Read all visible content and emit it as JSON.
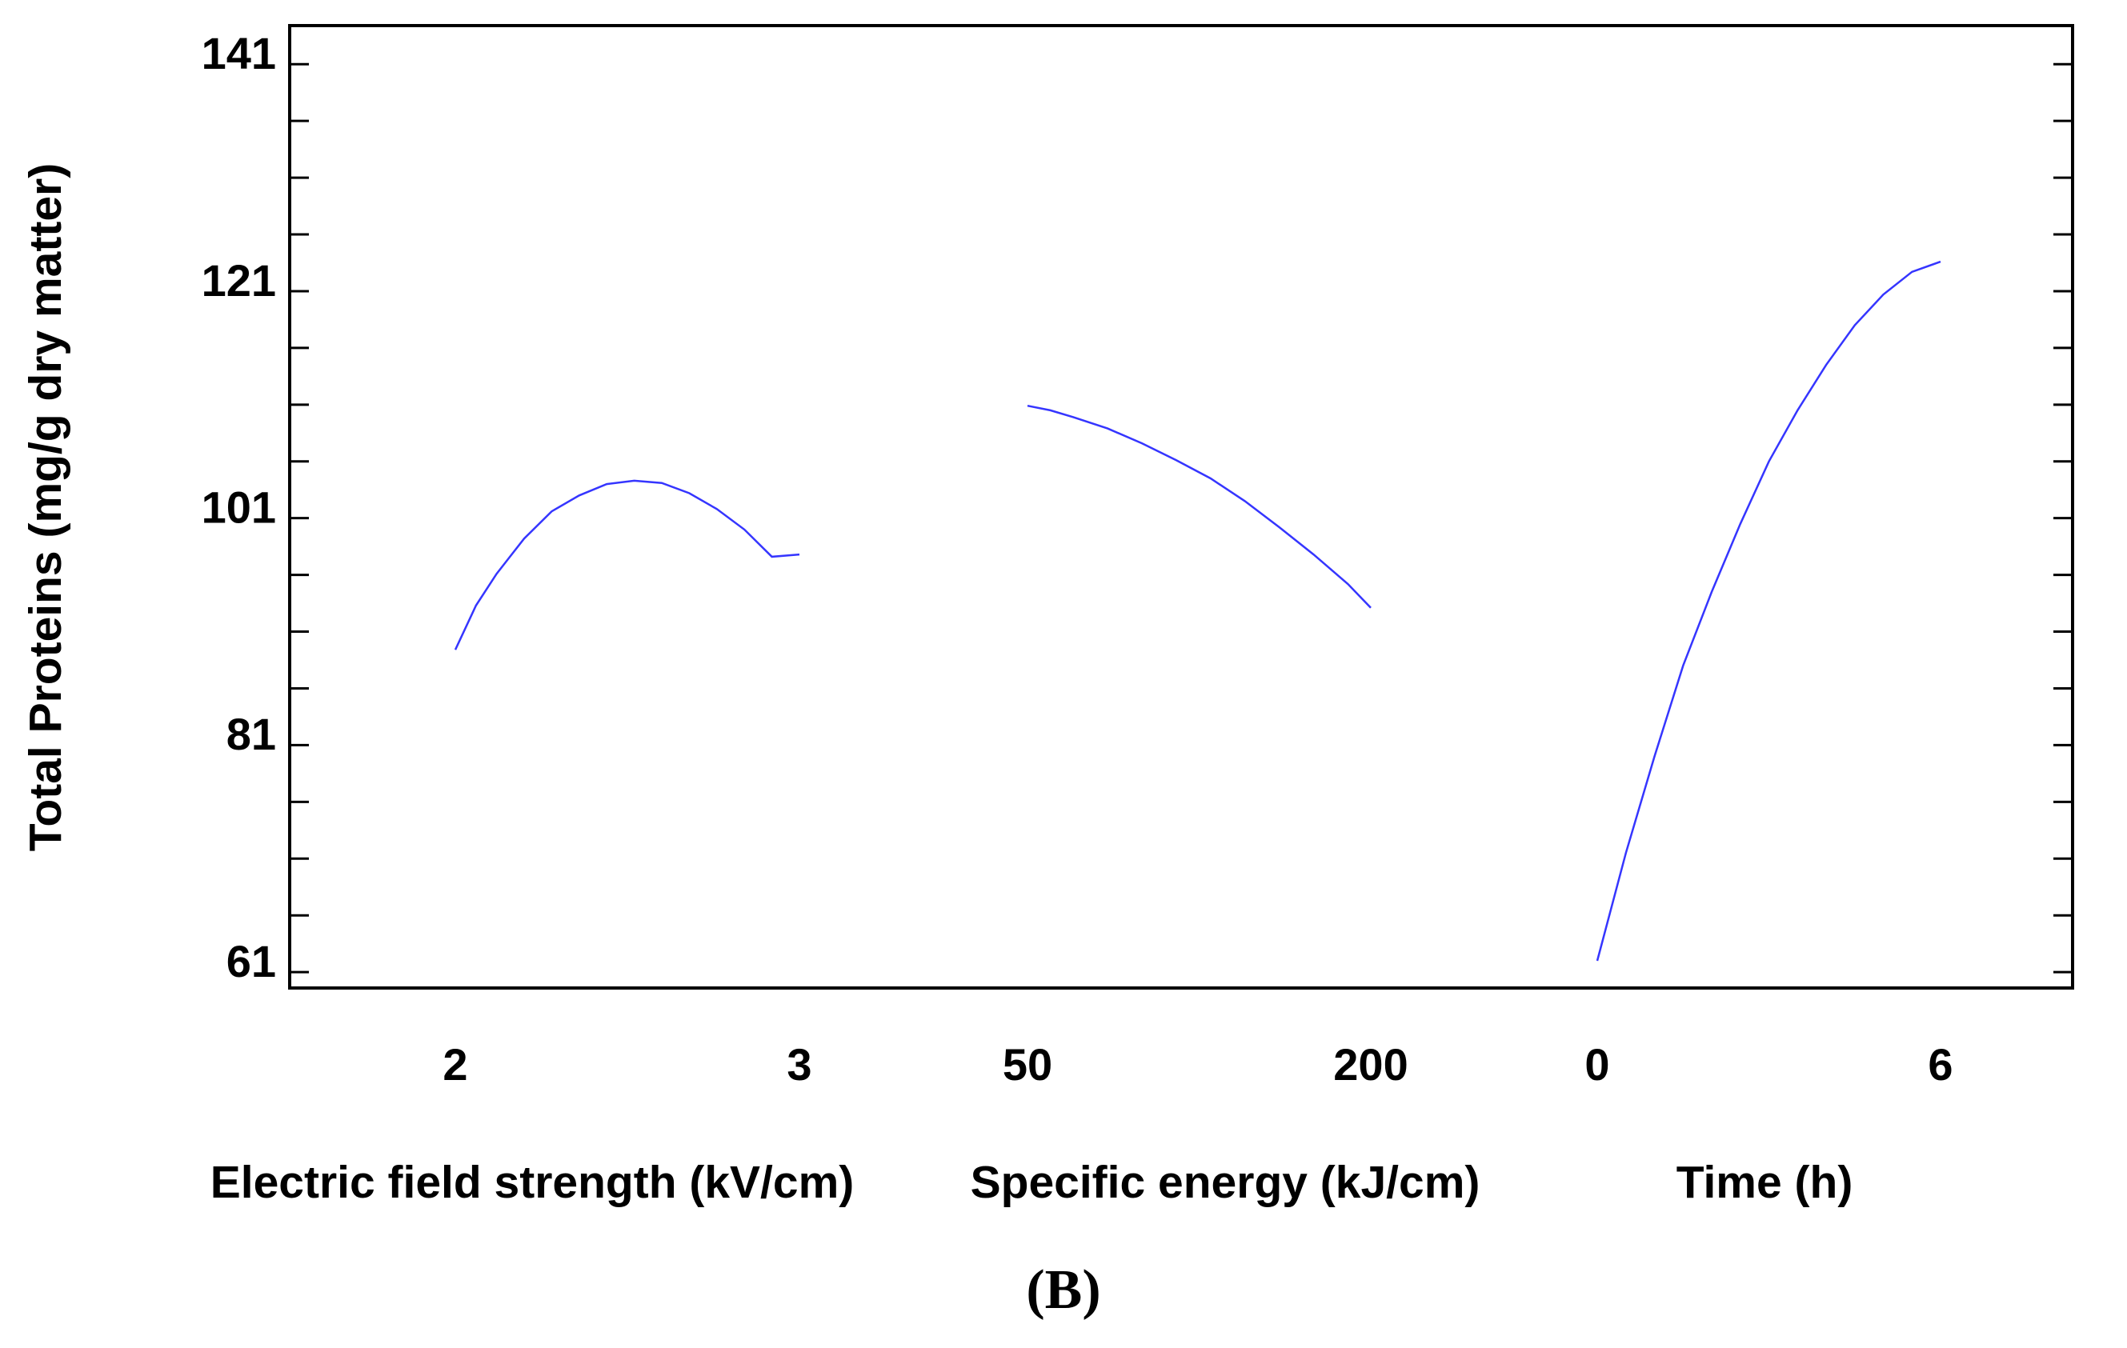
{
  "chart_data": {
    "type": "line",
    "ylabel": "Total Proteins (mg/g dry matter)",
    "ylim": [
      58.6,
      143.4
    ],
    "y_ticks": [
      "141",
      "121",
      "101",
      "81",
      "61"
    ],
    "y_tick_values": [
      141,
      121,
      101,
      81,
      61
    ],
    "y_minor_step": 5,
    "panel_label_open": "(",
    "panel_label_letter": "B",
    "panel_label_close": ")",
    "line_color": "#3535ff",
    "panels": [
      {
        "xlabel": "Electric field strength (kV/cm)",
        "x_ticks": [
          "2",
          "3"
        ],
        "x_range": [
          2,
          3
        ],
        "series": [
          {
            "x": 2.0,
            "y": 88.4
          },
          {
            "x": 2.06,
            "y": 92.3
          },
          {
            "x": 2.12,
            "y": 95.1
          },
          {
            "x": 2.2,
            "y": 98.2
          },
          {
            "x": 2.28,
            "y": 100.6
          },
          {
            "x": 2.36,
            "y": 102.0
          },
          {
            "x": 2.44,
            "y": 103.0
          },
          {
            "x": 2.52,
            "y": 103.3
          },
          {
            "x": 2.6,
            "y": 103.1
          },
          {
            "x": 2.68,
            "y": 102.2
          },
          {
            "x": 2.76,
            "y": 100.8
          },
          {
            "x": 2.84,
            "y": 99.0
          },
          {
            "x": 2.92,
            "y": 96.6
          },
          {
            "x": 3.0,
            "y": 96.8
          }
        ]
      },
      {
        "xlabel": "Specific energy (kJ/cm)",
        "x_ticks": [
          "50",
          "200"
        ],
        "x_range": [
          50,
          200
        ],
        "series": [
          {
            "x": 50,
            "y": 109.9
          },
          {
            "x": 60,
            "y": 109.5
          },
          {
            "x": 70,
            "y": 108.9
          },
          {
            "x": 85,
            "y": 107.9
          },
          {
            "x": 100,
            "y": 106.6
          },
          {
            "x": 115,
            "y": 105.1
          },
          {
            "x": 130,
            "y": 103.5
          },
          {
            "x": 145,
            "y": 101.5
          },
          {
            "x": 160,
            "y": 99.2
          },
          {
            "x": 175,
            "y": 96.8
          },
          {
            "x": 190,
            "y": 94.2
          },
          {
            "x": 200,
            "y": 92.1
          }
        ]
      },
      {
        "xlabel": "Time (h)",
        "x_ticks": [
          "0",
          "6"
        ],
        "x_range": [
          0,
          6
        ],
        "series": [
          {
            "x": 0.0,
            "y": 61.0
          },
          {
            "x": 0.5,
            "y": 70.5
          },
          {
            "x": 1.0,
            "y": 79.0
          },
          {
            "x": 1.5,
            "y": 87.0
          },
          {
            "x": 2.0,
            "y": 93.5
          },
          {
            "x": 2.5,
            "y": 99.5
          },
          {
            "x": 3.0,
            "y": 105.0
          },
          {
            "x": 3.5,
            "y": 109.5
          },
          {
            "x": 4.0,
            "y": 113.5
          },
          {
            "x": 4.5,
            "y": 117.0
          },
          {
            "x": 5.0,
            "y": 119.7
          },
          {
            "x": 5.5,
            "y": 121.7
          },
          {
            "x": 6.0,
            "y": 122.6
          }
        ]
      }
    ]
  }
}
